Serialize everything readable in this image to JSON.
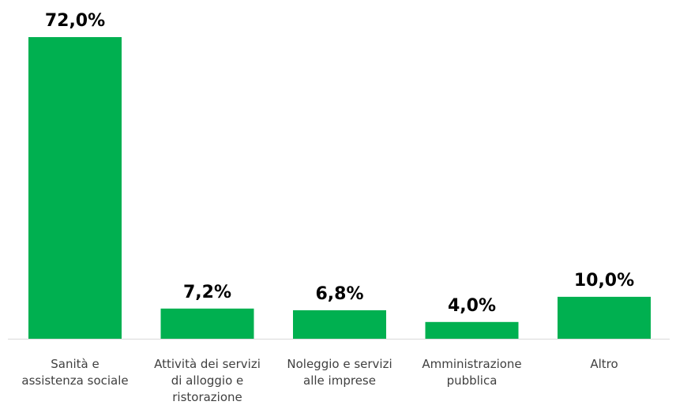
{
  "chart_data": {
    "type": "bar",
    "title": "",
    "xlabel": "",
    "ylabel": "",
    "categories": [
      "Sanità e assistenza sociale",
      "Attività dei servizi di alloggio e ristorazione",
      "Noleggio e servizi alle imprese",
      "Amministrazione pubblica",
      "Altro"
    ],
    "category_label_lines": [
      [
        "Sanità e",
        "assistenza sociale"
      ],
      [
        "Attività dei servizi",
        "di alloggio e",
        "ristorazione"
      ],
      [
        "Noleggio e servizi",
        "alle imprese"
      ],
      [
        "Amministrazione",
        "pubblica"
      ],
      [
        "Altro"
      ]
    ],
    "values": [
      72.0,
      7.2,
      6.8,
      4.0,
      10.0
    ],
    "data_labels": [
      "72,0%",
      "7,2%",
      "6,8%",
      "4,0%",
      "10,0%"
    ],
    "unit": "%",
    "ylim": [
      0,
      72
    ],
    "grid": false,
    "legend": "none",
    "bar_color": "#00b050",
    "axis_color": "#d9d9d9"
  }
}
